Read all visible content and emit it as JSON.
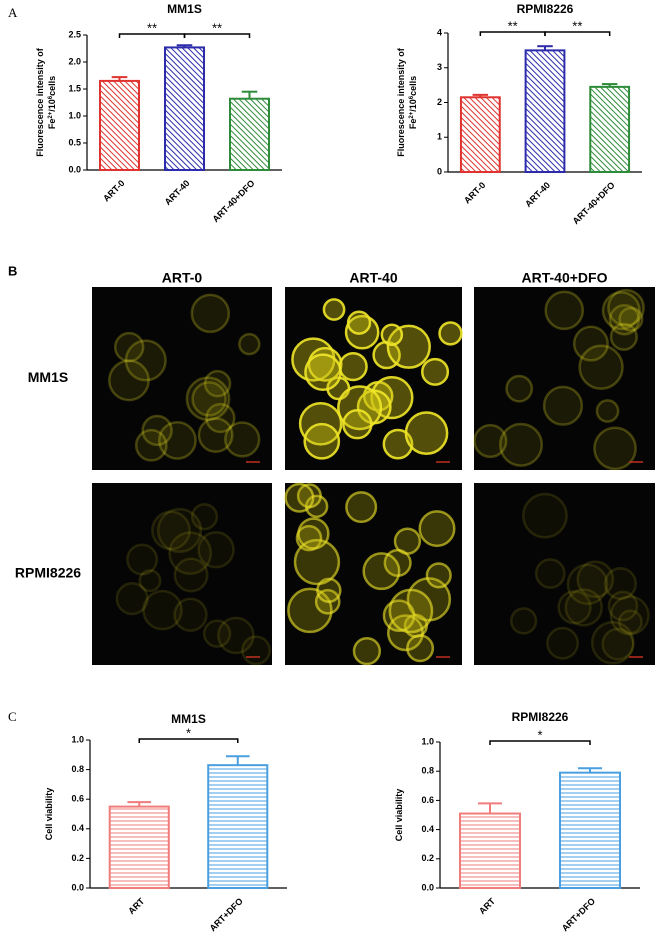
{
  "panel_labels": [
    "A",
    "B",
    "C"
  ],
  "chart_data": [
    {
      "type": "bar",
      "title": "MM1S",
      "y_label": [
        "Fluorescence intensity of",
        [
          "Fe",
          "2+",
          "/10",
          "6",
          "cells"
        ]
      ],
      "categories": [
        "ART-0",
        "ART-40",
        "ART-40+DFO"
      ],
      "values": [
        1.65,
        2.27,
        1.32
      ],
      "errors": [
        0.07,
        0.04,
        0.13
      ],
      "colors": [
        "#e0322e",
        "#2b2bab",
        "#2e8b3a"
      ],
      "hatch": "diagonal",
      "annotations": [
        "**",
        "**"
      ],
      "ylim": [
        0,
        2.5
      ],
      "yticks": [
        {
          "value": 0,
          "label": "0.0"
        },
        0.5,
        {
          "value": 1,
          "label": "1.0"
        },
        1.5,
        {
          "value": 2,
          "label": "2.0"
        },
        2.5
      ]
    },
    {
      "type": "bar",
      "title": "RPMI8226",
      "y_label": [
        "Fluorescence intensity of",
        [
          "Fe",
          "2+",
          "/10",
          "6",
          "cells"
        ]
      ],
      "categories": [
        "ART-0",
        "ART-40",
        "ART-40+DFO"
      ],
      "values": [
        2.15,
        3.5,
        2.45
      ],
      "errors": [
        0.07,
        0.12,
        0.08
      ],
      "colors": [
        "#e0322e",
        "#2b2bab",
        "#2e8b3a"
      ],
      "hatch": "diagonal",
      "annotations": [
        "**",
        "**"
      ],
      "ylim": [
        0,
        4
      ],
      "yticks": [
        0,
        1,
        2,
        3,
        4
      ]
    },
    {
      "type": "bar",
      "title": "MM1S",
      "y_label": [
        "Cell viability"
      ],
      "categories": [
        "ART",
        "ART+DFO"
      ],
      "values": [
        0.55,
        0.83
      ],
      "errors": [
        0.03,
        0.06
      ],
      "colors": [
        "#f07c7c",
        "#4a9fe0"
      ],
      "hatch": "horizontal",
      "annotations": [
        "*"
      ],
      "ylim": [
        0,
        1
      ],
      "yticks": [
        {
          "value": 0,
          "label": "0.0"
        },
        0.2,
        0.4,
        0.6,
        0.8,
        {
          "value": 1,
          "label": "1.0"
        }
      ]
    },
    {
      "type": "bar",
      "title": "RPMI8226",
      "y_label": [
        "Cell viability"
      ],
      "categories": [
        "ART",
        "ART+DFO"
      ],
      "values": [
        0.51,
        0.79
      ],
      "errors": [
        0.07,
        0.03
      ],
      "colors": [
        "#f07c7c",
        "#4a9fe0"
      ],
      "hatch": "horizontal",
      "annotations": [
        "*"
      ],
      "ylim": [
        0,
        1
      ],
      "yticks": [
        {
          "value": 0,
          "label": "0.0"
        },
        0.2,
        0.4,
        0.6,
        0.8,
        {
          "value": 1,
          "label": "1.0"
        }
      ]
    }
  ],
  "microscopy": {
    "columns": [
      "ART-0",
      "ART-40",
      "ART-40+DFO"
    ],
    "rows": [
      "MM1S",
      "RPMI8226"
    ]
  }
}
